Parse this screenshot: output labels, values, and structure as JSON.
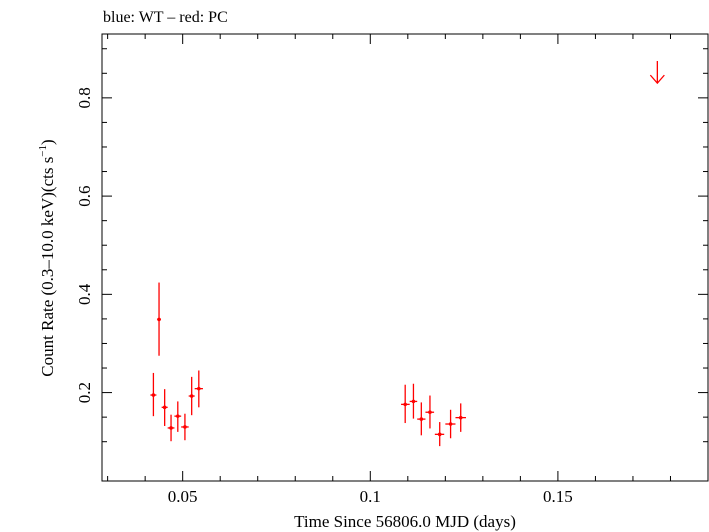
{
  "chart_data": {
    "type": "scatter",
    "title": "blue: WT – red: PC",
    "xlabel": "Time Since 56806.0 MJD (days)",
    "ylabel_main": "Count Rate (0.3–10.0 keV)(cts s",
    "ylabel_sup": "−1",
    "ylabel_end": ")",
    "xlim": [
      0.0285,
      0.19
    ],
    "ylim": [
      0.02,
      0.93
    ],
    "xticks": [
      {
        "value": 0.05,
        "label": "0.05"
      },
      {
        "value": 0.1,
        "label": "0.1"
      },
      {
        "value": 0.15,
        "label": "0.15"
      }
    ],
    "yticks": [
      {
        "value": 0.2,
        "label": "0.2"
      },
      {
        "value": 0.4,
        "label": "0.4"
      },
      {
        "value": 0.6,
        "label": "0.6"
      },
      {
        "value": 0.8,
        "label": "0.8"
      }
    ],
    "grid": false,
    "colors": {
      "PC": "#ff0000",
      "WT": "#0000ff",
      "axes": "#000000"
    },
    "series": [
      {
        "name": "PC",
        "color": "#ff0000",
        "points": [
          {
            "x": 0.0422,
            "y": 0.195,
            "ylo": 0.152,
            "yhi": 0.24,
            "xlo": 0.0414,
            "xhi": 0.043
          },
          {
            "x": 0.0437,
            "y": 0.349,
            "ylo": 0.275,
            "yhi": 0.424,
            "xlo": 0.0432,
            "xhi": 0.0442
          },
          {
            "x": 0.0452,
            "y": 0.17,
            "ylo": 0.132,
            "yhi": 0.207,
            "xlo": 0.0444,
            "xhi": 0.046
          },
          {
            "x": 0.0469,
            "y": 0.128,
            "ylo": 0.101,
            "yhi": 0.155,
            "xlo": 0.046,
            "xhi": 0.0478
          },
          {
            "x": 0.0487,
            "y": 0.152,
            "ylo": 0.12,
            "yhi": 0.182,
            "xlo": 0.0478,
            "xhi": 0.0496
          },
          {
            "x": 0.0506,
            "y": 0.13,
            "ylo": 0.103,
            "yhi": 0.157,
            "xlo": 0.0496,
            "xhi": 0.0516
          },
          {
            "x": 0.0524,
            "y": 0.193,
            "ylo": 0.154,
            "yhi": 0.232,
            "xlo": 0.0516,
            "xhi": 0.0532
          },
          {
            "x": 0.0543,
            "y": 0.208,
            "ylo": 0.17,
            "yhi": 0.245,
            "xlo": 0.0532,
            "xhi": 0.0554
          },
          {
            "x": 0.1093,
            "y": 0.176,
            "ylo": 0.138,
            "yhi": 0.216,
            "xlo": 0.1082,
            "xhi": 0.1105
          },
          {
            "x": 0.1115,
            "y": 0.182,
            "ylo": 0.147,
            "yhi": 0.218,
            "xlo": 0.1105,
            "xhi": 0.1125
          },
          {
            "x": 0.1136,
            "y": 0.146,
            "ylo": 0.113,
            "yhi": 0.18,
            "xlo": 0.1125,
            "xhi": 0.1147
          },
          {
            "x": 0.1159,
            "y": 0.16,
            "ylo": 0.127,
            "yhi": 0.194,
            "xlo": 0.1147,
            "xhi": 0.117
          },
          {
            "x": 0.1185,
            "y": 0.115,
            "ylo": 0.091,
            "yhi": 0.14,
            "xlo": 0.1172,
            "xhi": 0.1197
          },
          {
            "x": 0.1214,
            "y": 0.136,
            "ylo": 0.107,
            "yhi": 0.165,
            "xlo": 0.12,
            "xhi": 0.1227
          },
          {
            "x": 0.1241,
            "y": 0.149,
            "ylo": 0.12,
            "yhi": 0.178,
            "xlo": 0.1227,
            "xhi": 0.1255
          }
        ],
        "upper_limits": [
          {
            "x": 0.1765,
            "y": 0.875,
            "to": 0.83
          }
        ]
      }
    ]
  }
}
